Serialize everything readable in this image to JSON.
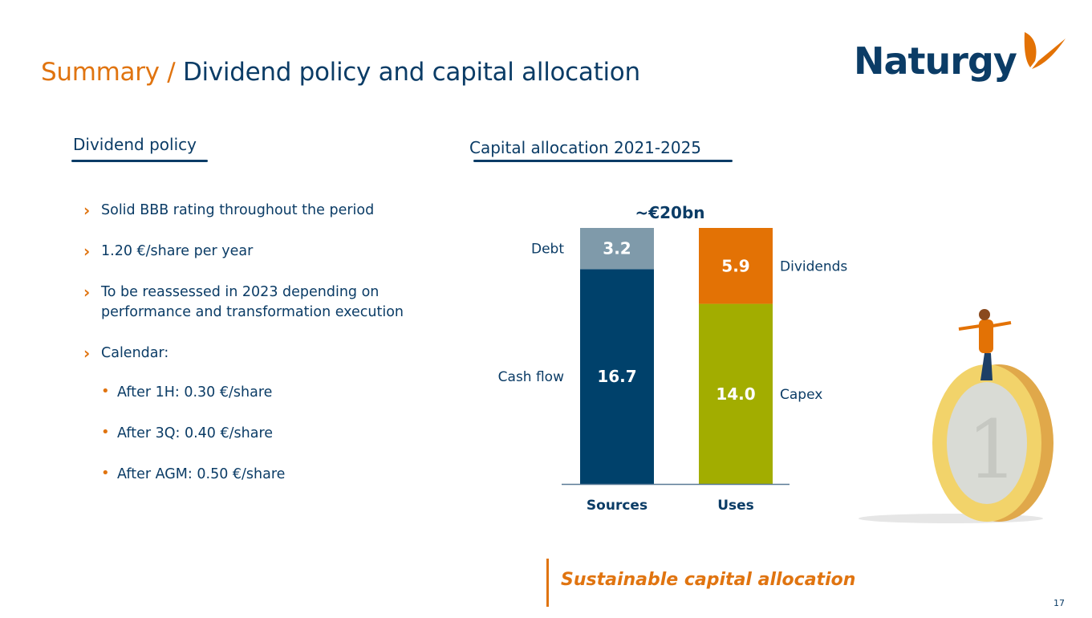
{
  "header": {
    "title_prefix": "Summary / ",
    "title_main": "Dividend policy and capital allocation",
    "logo_text": "Naturgy"
  },
  "dividend_policy": {
    "heading": "Dividend policy",
    "bullets": [
      "Solid BBB rating throughout the period",
      "1.20 €/share per year",
      "To be reassessed in 2023 depending on",
      "performance and transformation execution",
      "Calendar:"
    ],
    "calendar": [
      "After 1H: 0.30 €/share",
      "After 3Q: 0.40 €/share",
      "After AGM: 0.50 €/share"
    ]
  },
  "chart_data": {
    "type": "bar",
    "stacked": true,
    "title": "Capital allocation 2021-2025",
    "total_label": "~€20bn",
    "categories": [
      "Sources",
      "Uses"
    ],
    "stacks": [
      {
        "category": "Sources",
        "segments": [
          {
            "name": "Cash flow",
            "value": 16.7,
            "label": "16.7",
            "color": "#00416b"
          },
          {
            "name": "Debt",
            "value": 3.2,
            "label": "3.2",
            "color": "#7f9aaa"
          }
        ]
      },
      {
        "category": "Uses",
        "segments": [
          {
            "name": "Capex",
            "value": 14.0,
            "label": "14.0",
            "color": "#a2ad00"
          },
          {
            "name": "Dividends",
            "value": 5.9,
            "label": "5.9",
            "color": "#e37205"
          }
        ]
      }
    ],
    "ylim": [
      0,
      20
    ],
    "grid": false,
    "unit": "€bn"
  },
  "footer": {
    "tagline": "Sustainable capital allocation",
    "page_number": "17"
  },
  "colors": {
    "navy": "#0b3c66",
    "orange": "#e07410"
  }
}
